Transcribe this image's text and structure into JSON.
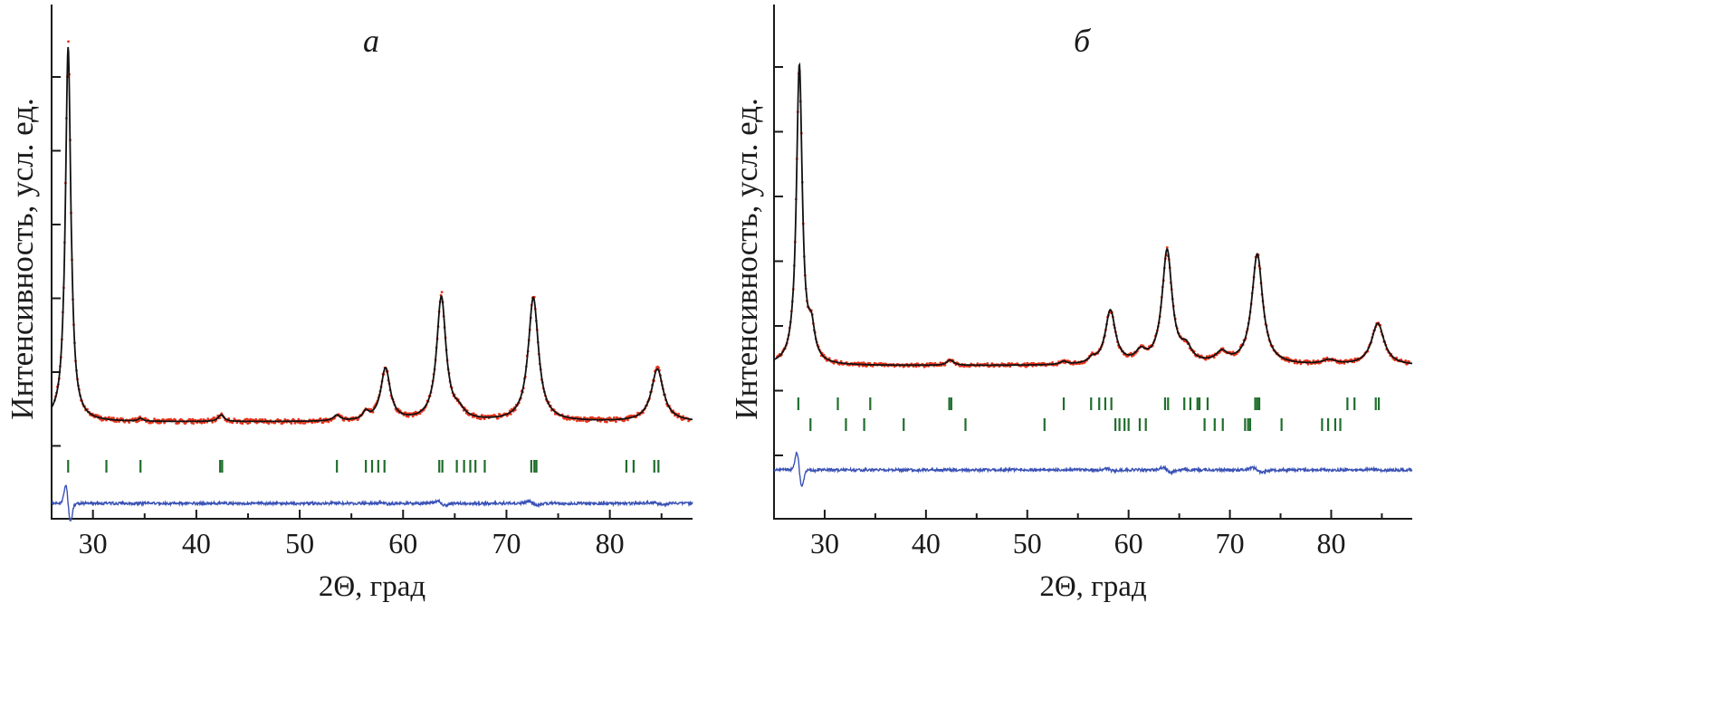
{
  "chart_data": [
    {
      "type": "line",
      "panel_label": "а",
      "xlabel": "2Θ, град",
      "ylabel": "Интенсивность, усл. ед.",
      "xlim": [
        26,
        88
      ],
      "x_ticks": [
        30,
        40,
        50,
        60,
        70,
        80
      ],
      "y_tick_count": 6,
      "grid": false,
      "colors": {
        "calculated": "#111111",
        "observed": "#e8341c",
        "difference": "#3a52b6",
        "reflections": "#1f6e2c"
      },
      "baseline": 0.0,
      "peaks": [
        {
          "x": 27.6,
          "h": 1.0,
          "w": 0.32
        },
        {
          "x": 34.6,
          "h": 0.008,
          "w": 0.25
        },
        {
          "x": 42.4,
          "h": 0.018,
          "w": 0.35
        },
        {
          "x": 53.6,
          "h": 0.015,
          "w": 0.4
        },
        {
          "x": 56.4,
          "h": 0.02,
          "w": 0.35
        },
        {
          "x": 58.3,
          "h": 0.14,
          "w": 0.55
        },
        {
          "x": 63.7,
          "h": 0.33,
          "w": 0.55
        },
        {
          "x": 65.4,
          "h": 0.02,
          "w": 0.6
        },
        {
          "x": 72.6,
          "h": 0.33,
          "w": 0.6
        },
        {
          "x": 84.6,
          "h": 0.14,
          "w": 0.7
        }
      ],
      "reflections_row1": [
        27.6,
        31.3,
        34.6,
        42.3,
        42.5,
        53.6,
        56.4,
        57.0,
        57.6,
        58.2,
        63.5,
        63.8,
        65.2,
        65.9,
        66.5,
        67.0,
        67.9,
        72.4,
        72.7,
        72.9,
        81.6,
        82.3,
        84.3,
        84.7
      ]
    },
    {
      "type": "line",
      "panel_label": "б",
      "xlabel": "2Θ, град",
      "ylabel": "Интенсивность, усл. ед.",
      "xlim": [
        25,
        88
      ],
      "x_ticks": [
        30,
        40,
        50,
        60,
        70,
        80
      ],
      "y_tick_count": 7,
      "grid": false,
      "colors": {
        "calculated": "#111111",
        "observed": "#e8341c",
        "difference": "#3a52b6",
        "reflections": "#1f6e2c"
      },
      "baseline": 0.0,
      "peaks": [
        {
          "x": 27.5,
          "h": 1.0,
          "w": 0.35
        },
        {
          "x": 28.7,
          "h": 0.1,
          "w": 0.4
        },
        {
          "x": 42.4,
          "h": 0.018,
          "w": 0.4
        },
        {
          "x": 53.6,
          "h": 0.01,
          "w": 0.4
        },
        {
          "x": 56.4,
          "h": 0.015,
          "w": 0.4
        },
        {
          "x": 58.2,
          "h": 0.18,
          "w": 0.6
        },
        {
          "x": 61.2,
          "h": 0.035,
          "w": 0.6
        },
        {
          "x": 63.8,
          "h": 0.38,
          "w": 0.6
        },
        {
          "x": 65.7,
          "h": 0.045,
          "w": 0.6
        },
        {
          "x": 69.2,
          "h": 0.035,
          "w": 0.7
        },
        {
          "x": 72.7,
          "h": 0.37,
          "w": 0.65
        },
        {
          "x": 79.8,
          "h": 0.015,
          "w": 0.8
        },
        {
          "x": 84.6,
          "h": 0.14,
          "w": 0.75
        }
      ],
      "reflections_row1": [
        27.4,
        31.3,
        34.5,
        42.3,
        42.5,
        53.6,
        56.3,
        57.1,
        57.7,
        58.3,
        63.6,
        63.9,
        65.5,
        66.1,
        66.8,
        67.0,
        67.8,
        72.5,
        72.7,
        72.9,
        81.6,
        82.3,
        84.4,
        84.7
      ],
      "reflections_row2": [
        28.6,
        32.1,
        33.9,
        37.8,
        43.9,
        51.7,
        58.7,
        59.1,
        59.6,
        60.0,
        61.1,
        61.7,
        67.5,
        68.5,
        69.3,
        71.5,
        71.8,
        72.0,
        75.1,
        79.1,
        79.7,
        80.4,
        80.9
      ]
    }
  ]
}
